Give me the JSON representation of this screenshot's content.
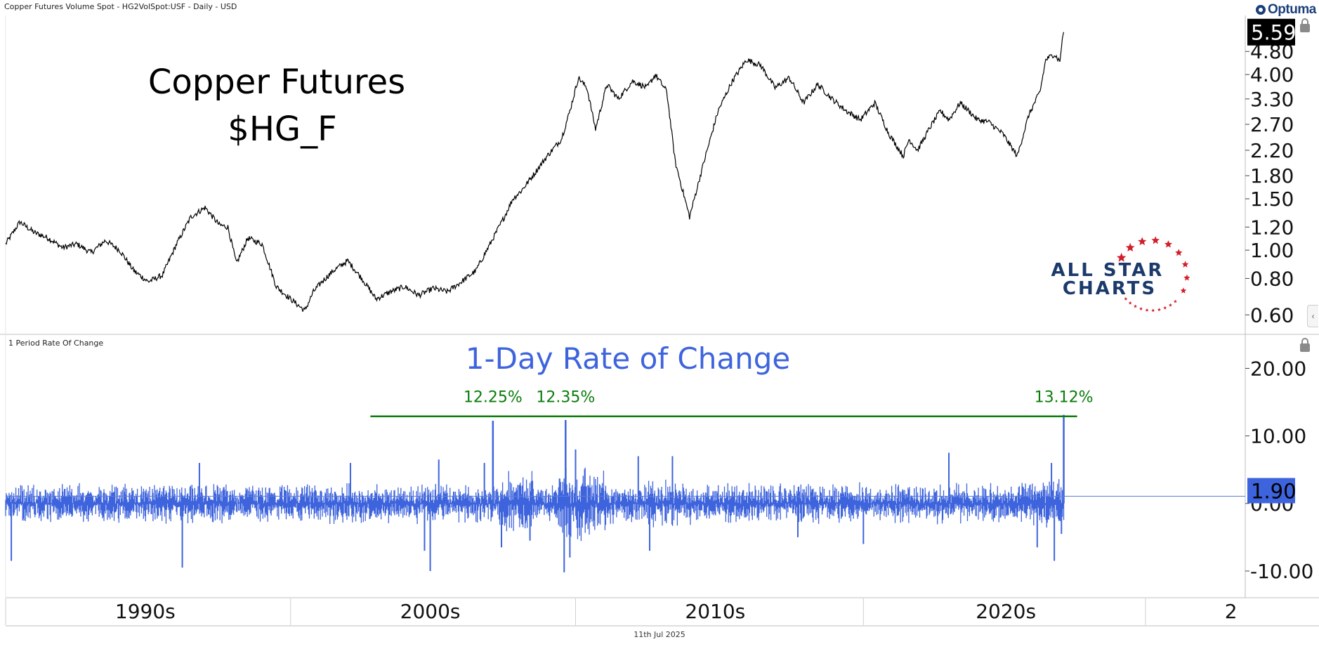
{
  "header": {
    "instrument_line": "Copper Futures Volume Spot - HG2VolSpot:USF - Daily - USD",
    "logo_text": "Optuma",
    "date_label": "11th Jul 2025"
  },
  "branding": {
    "line1": "ALL STAR",
    "line2": "CHARTS",
    "star_color": "#d21e2b",
    "text_color": "#1b3a6b"
  },
  "chart_data": [
    {
      "type": "line",
      "title": "Copper Futures",
      "subtitle": "$HG_F",
      "scale": "log",
      "x_range": [
        1988.5,
        2032.0
      ],
      "ylim": [
        0.55,
        5.9
      ],
      "y_ticks": [
        "0.60",
        "0.80",
        "1.00",
        "1.20",
        "1.50",
        "1.80",
        "2.20",
        "2.70",
        "3.30",
        "4.00",
        "4.80"
      ],
      "last_value": "5.59",
      "grid": false,
      "series": [
        {
          "color": "#000000",
          "x": [
            1988.5,
            1989.0,
            1989.5,
            1990.0,
            1990.5,
            1991.0,
            1991.5,
            1992.0,
            1992.5,
            1993.0,
            1993.5,
            1994.0,
            1994.5,
            1995.0,
            1995.5,
            1996.0,
            1996.3,
            1996.6,
            1997.0,
            1997.5,
            1998.0,
            1998.5,
            1999.0,
            1999.3,
            1999.6,
            2000.0,
            2000.5,
            2001.0,
            2001.5,
            2002.0,
            2002.5,
            2003.0,
            2003.5,
            2004.0,
            2004.5,
            2005.0,
            2005.5,
            2006.0,
            2006.3,
            2006.6,
            2007.0,
            2007.5,
            2008.0,
            2008.3,
            2008.6,
            2008.9,
            2009.2,
            2009.6,
            2010.0,
            2010.5,
            2011.0,
            2011.3,
            2011.7,
            2012.0,
            2012.5,
            2013.0,
            2013.5,
            2014.0,
            2014.5,
            2015.0,
            2015.5,
            2016.0,
            2016.5,
            2017.0,
            2017.5,
            2018.0,
            2018.5,
            2019.0,
            2019.5,
            2020.0,
            2020.2,
            2020.5,
            2021.0,
            2021.3,
            2021.6,
            2022.0,
            2022.3,
            2022.6,
            2023.0,
            2023.5,
            2024.0,
            2024.4,
            2024.8,
            2025.0,
            2025.3,
            2025.52
          ],
          "values": [
            1.05,
            1.25,
            1.15,
            1.1,
            1.02,
            1.05,
            0.98,
            1.08,
            1.0,
            0.85,
            0.78,
            0.82,
            1.05,
            1.3,
            1.4,
            1.22,
            1.2,
            0.9,
            1.1,
            1.05,
            0.75,
            0.68,
            0.62,
            0.72,
            0.78,
            0.85,
            0.92,
            0.8,
            0.68,
            0.72,
            0.75,
            0.7,
            0.74,
            0.72,
            0.78,
            0.85,
            1.05,
            1.3,
            1.5,
            1.6,
            1.8,
            2.1,
            2.4,
            3.0,
            3.9,
            3.6,
            2.6,
            3.7,
            3.3,
            3.8,
            3.6,
            4.0,
            3.5,
            2.0,
            1.3,
            2.0,
            3.0,
            3.8,
            4.5,
            4.3,
            3.6,
            3.9,
            3.2,
            3.7,
            3.3,
            3.0,
            2.8,
            3.2,
            2.5,
            2.1,
            2.4,
            2.2,
            2.7,
            3.0,
            2.8,
            3.2,
            3.0,
            2.8,
            2.75,
            2.5,
            2.1,
            2.9,
            3.5,
            4.5,
            4.7,
            4.4
          ],
          "tail_x": [
            2025.55,
            2025.58,
            2025.61,
            2025.63
          ],
          "tail_values": [
            4.95,
            5.3,
            5.5,
            5.59
          ]
        }
      ]
    },
    {
      "type": "bar",
      "title": "1-Day Rate of Change",
      "panel_label": "1 Period Rate Of Change",
      "x_range": [
        1988.5,
        2032.0
      ],
      "ylim": [
        -12.5,
        24.0
      ],
      "y_ticks": [
        "-10.00",
        "0.00",
        "10.00",
        "20.00"
      ],
      "last_value": "1.90",
      "color": "#3e64dd",
      "threshold": {
        "value": 12.9,
        "x_start": 2001.3,
        "x_end": 2026.1,
        "color": "#0a7d0a"
      },
      "annotations": [
        {
          "x": 2005.6,
          "value": 12.25,
          "label": "12.25%"
        },
        {
          "x": 2008.15,
          "value": 12.35,
          "label": "12.35%"
        },
        {
          "x": 2025.63,
          "value": 13.12,
          "label": "13.12%"
        }
      ],
      "negative_spikes": [
        {
          "x": 1988.7,
          "value": -8.5
        },
        {
          "x": 1994.7,
          "value": -9.5
        },
        {
          "x": 2003.4,
          "value": -10.0
        },
        {
          "x": 2003.2,
          "value": -7.0
        },
        {
          "x": 2005.9,
          "value": -6.5
        },
        {
          "x": 2006.9,
          "value": -5.5
        },
        {
          "x": 2008.1,
          "value": -10.2
        },
        {
          "x": 2008.3,
          "value": -8.0
        },
        {
          "x": 2011.1,
          "value": -7.0
        },
        {
          "x": 2016.3,
          "value": -5.0
        },
        {
          "x": 2018.6,
          "value": -6.0
        },
        {
          "x": 2024.7,
          "value": -6.5
        },
        {
          "x": 2025.3,
          "value": -8.5
        },
        {
          "x": 2025.55,
          "value": -4.5
        }
      ],
      "positive_spikes": [
        {
          "x": 1995.3,
          "value": 6.0
        },
        {
          "x": 2000.6,
          "value": 6.0
        },
        {
          "x": 2003.7,
          "value": 6.5
        },
        {
          "x": 2005.3,
          "value": 6.0
        },
        {
          "x": 2008.5,
          "value": 8.0
        },
        {
          "x": 2010.7,
          "value": 7.0
        },
        {
          "x": 2011.9,
          "value": 7.0
        },
        {
          "x": 2021.6,
          "value": 7.5
        },
        {
          "x": 2025.2,
          "value": 6.0
        }
      ]
    }
  ],
  "x_axis": {
    "labels": [
      {
        "x": 1993.4,
        "label": "1990s"
      },
      {
        "x": 2003.4,
        "label": "2000s"
      },
      {
        "x": 2013.4,
        "label": "2010s"
      },
      {
        "x": 2023.6,
        "label": "2020s"
      },
      {
        "x": 2031.5,
        "label": "2"
      }
    ],
    "dividers": [
      1988.5,
      1998.5,
      2008.5,
      2018.6,
      2028.5
    ]
  }
}
